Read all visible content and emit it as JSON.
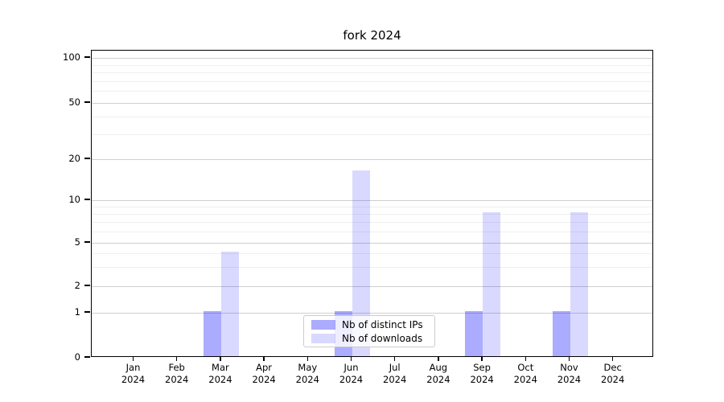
{
  "title": "fork 2024",
  "legend": {
    "items": [
      {
        "label": "Nb of distinct IPs",
        "fill": "rgba(0,0,255,0.33)"
      },
      {
        "label": "Nb of downloads",
        "fill": "rgba(0,0,255,0.15)"
      }
    ]
  },
  "chart_data": {
    "type": "bar",
    "title": "fork 2024",
    "categories": [
      "Jan",
      "Feb",
      "Mar",
      "Apr",
      "May",
      "Jun",
      "Jul",
      "Aug",
      "Sep",
      "Oct",
      "Nov",
      "Dec"
    ],
    "category_sublabel": "2024",
    "series": [
      {
        "name": "Nb of distinct IPs",
        "fill": "rgba(0,0,255,0.33)",
        "hex_over_white": "#ababff",
        "values": [
          0,
          0,
          1,
          0,
          0,
          1,
          0,
          0,
          1,
          0,
          1,
          0
        ]
      },
      {
        "name": "Nb of downloads",
        "fill": "rgba(0,0,255,0.15)",
        "hex_over_white": "#d9d9ff",
        "values": [
          0,
          0,
          4,
          0,
          0,
          16,
          0,
          0,
          8,
          0,
          8,
          0
        ]
      }
    ],
    "xlabel": "",
    "ylabel": "",
    "yscale": "log-like (0,1 linear segment then logarithmic)",
    "ylim": [
      0,
      110
    ],
    "yticks": [
      0,
      1,
      2,
      5,
      10,
      20,
      50,
      100
    ],
    "minor_gridline_values": [
      3,
      4,
      6,
      7,
      8,
      9,
      30,
      40,
      60,
      70,
      80,
      90
    ],
    "grid": true,
    "legend_position": "lower center",
    "background_color": "#ffffff",
    "gridline_major_color": "#cfcfcf",
    "gridline_minor_color": "#efefef"
  }
}
